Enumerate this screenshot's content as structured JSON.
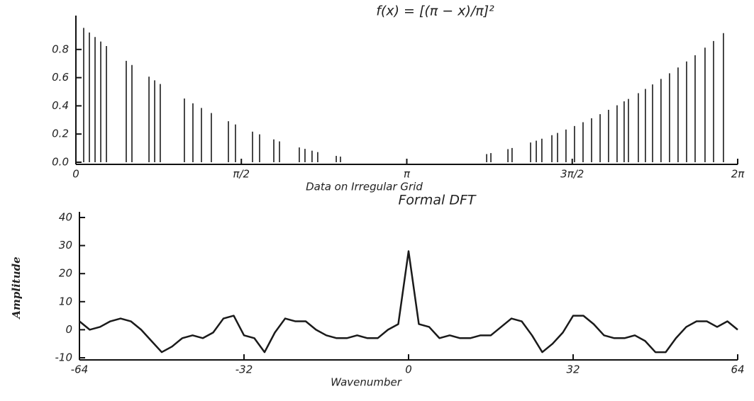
{
  "chart_data": [
    {
      "type": "stem",
      "title": "f(x) = [(π − x)/π]²",
      "xlabel": "Data on Irregular Grid",
      "x": [
        0.074,
        0.128,
        0.182,
        0.236,
        0.29,
        0.478,
        0.532,
        0.694,
        0.748,
        0.801,
        1.03,
        1.111,
        1.192,
        1.286,
        1.448,
        1.515,
        1.677,
        1.744,
        1.879,
        1.933,
        2.121,
        2.175,
        2.242,
        2.296,
        2.472,
        2.512,
        3.9,
        3.94,
        4.102,
        4.141,
        4.317,
        4.371,
        4.424,
        4.519,
        4.573,
        4.653,
        4.734,
        4.815,
        4.896,
        4.977,
        5.057,
        5.138,
        5.205,
        5.246,
        5.34,
        5.407,
        5.475,
        5.555,
        5.636,
        5.717,
        5.798,
        5.879,
        5.973,
        6.054,
        6.148
      ],
      "values": [
        0.953,
        0.92,
        0.888,
        0.856,
        0.824,
        0.719,
        0.69,
        0.607,
        0.581,
        0.555,
        0.452,
        0.418,
        0.385,
        0.349,
        0.291,
        0.268,
        0.217,
        0.198,
        0.162,
        0.148,
        0.105,
        0.095,
        0.082,
        0.072,
        0.045,
        0.04,
        0.058,
        0.065,
        0.093,
        0.101,
        0.14,
        0.153,
        0.167,
        0.192,
        0.208,
        0.232,
        0.257,
        0.284,
        0.312,
        0.341,
        0.372,
        0.404,
        0.432,
        0.449,
        0.49,
        0.52,
        0.552,
        0.591,
        0.631,
        0.672,
        0.715,
        0.759,
        0.813,
        0.86,
        0.916
      ],
      "color": "#1a1a1a",
      "xlim": [
        0,
        6.2832
      ],
      "ylim": [
        0,
        1
      ],
      "xticks": [
        0,
        {
          "value": 1.5708,
          "label": "π/2"
        },
        {
          "value": 3.1416,
          "label": "π"
        },
        {
          "value": 4.7124,
          "label": "3π/2"
        },
        {
          "value": 6.2832,
          "label": "2π"
        }
      ],
      "yticks": [
        {
          "value": 0,
          "label": "0.0"
        },
        0.2,
        0.4,
        0.6,
        0.8
      ]
    },
    {
      "type": "line",
      "title": "Formal DFT",
      "xlabel": "Wavenumber",
      "ylabel": "Amplitude",
      "x": [
        -64,
        -62,
        -60,
        -58,
        -56,
        -54,
        -52,
        -50,
        -48,
        -46,
        -44,
        -42,
        -40,
        -38,
        -36,
        -34,
        -32,
        -30,
        -28,
        -26,
        -24,
        -22,
        -20,
        -18,
        -16,
        -14,
        -12,
        -10,
        -8,
        -6,
        -4,
        -2,
        0,
        2,
        4,
        6,
        8,
        10,
        12,
        14,
        16,
        18,
        20,
        22,
        24,
        26,
        28,
        30,
        32,
        34,
        36,
        38,
        40,
        42,
        44,
        46,
        48,
        50,
        52,
        54,
        56,
        58,
        60,
        62,
        64
      ],
      "values": [
        3,
        0,
        1,
        3,
        4,
        3,
        0,
        -4,
        -8,
        -6,
        -3,
        -2,
        -3,
        -1,
        4,
        5,
        -2,
        -3,
        -8,
        -1,
        4,
        3,
        3,
        0,
        -2,
        -3,
        -3,
        -2,
        -3,
        -3,
        0,
        2,
        28,
        2,
        1,
        -3,
        -2,
        -3,
        -3,
        -2,
        -2,
        1,
        4,
        3,
        -2,
        -8,
        -5,
        -1,
        5,
        5,
        2,
        -2,
        -3,
        -3,
        -2,
        -4,
        -8,
        -8,
        -3,
        1,
        3,
        3,
        1,
        3,
        0
      ],
      "color": "#1a1a1a",
      "xlim": [
        -64,
        64
      ],
      "ylim": [
        -10,
        40
      ],
      "xticks": [
        -64,
        -32,
        0,
        32,
        64
      ],
      "yticks": [
        -10,
        0,
        10,
        20,
        30,
        40
      ]
    }
  ]
}
